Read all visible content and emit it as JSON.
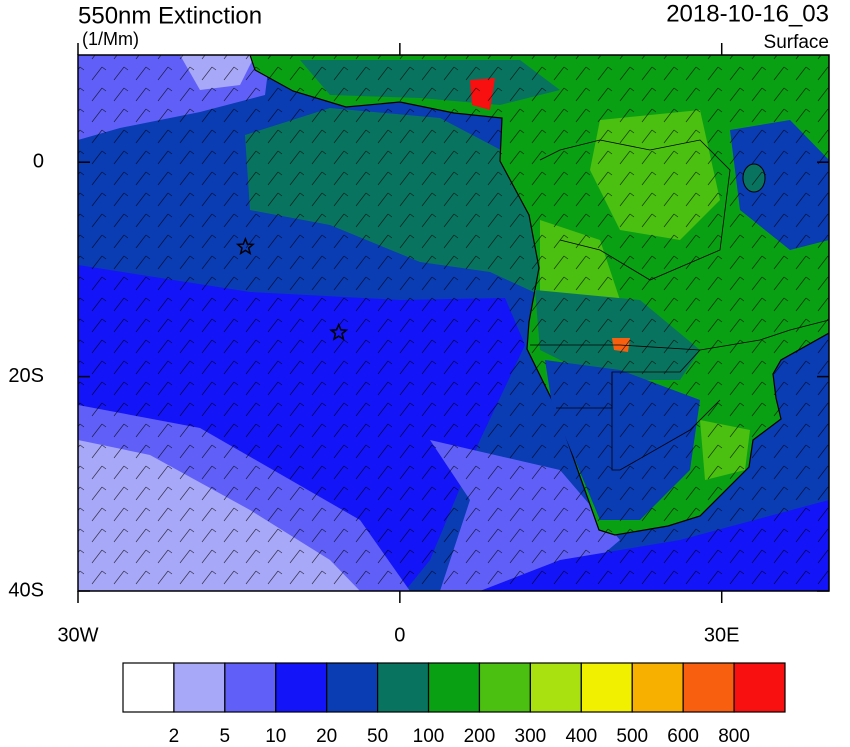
{
  "header": {
    "title": "550nm Extinction",
    "units": "(1/Mm)",
    "date": "2018-10-16_03",
    "level": "Surface"
  },
  "map": {
    "xlim": [
      -30,
      40
    ],
    "ylim": [
      -40,
      10
    ],
    "xticks": [
      {
        "value": -30,
        "label": "30W"
      },
      {
        "value": 0,
        "label": "0"
      },
      {
        "value": 30,
        "label": "30E"
      }
    ],
    "yticks": [
      {
        "value": 0,
        "label": "0"
      },
      {
        "value": -20,
        "label": "20S"
      },
      {
        "value": -40,
        "label": "40S"
      }
    ],
    "markers": [
      {
        "lon": -14.4,
        "lat": -7.9
      },
      {
        "lon": -5.7,
        "lat": -15.9
      }
    ]
  },
  "colorbar": {
    "levels": [
      2,
      5,
      10,
      20,
      50,
      100,
      200,
      300,
      400,
      500,
      600,
      800
    ],
    "colors": [
      "#ffffff",
      "#a8a8f8",
      "#6060f8",
      "#1414f8",
      "#0a3cb4",
      "#087460",
      "#0aa014",
      "#4cc010",
      "#a8e010",
      "#f0f000",
      "#f8b000",
      "#f86010",
      "#f81010"
    ]
  }
}
